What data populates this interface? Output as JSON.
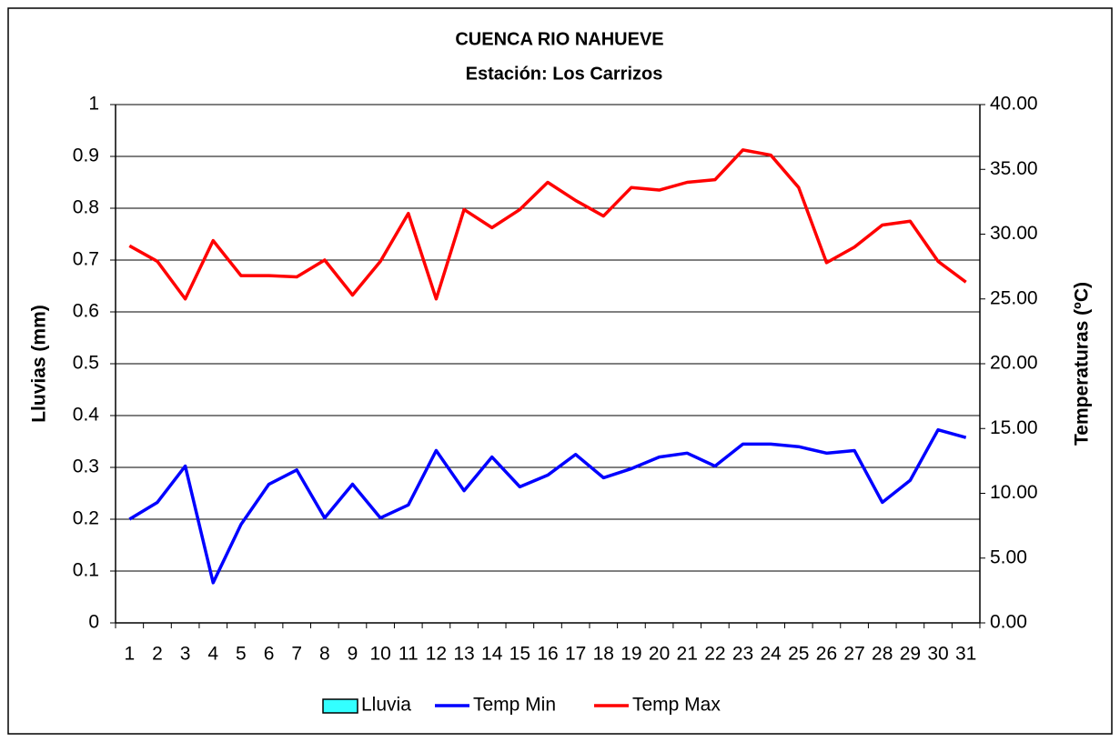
{
  "chart_data": {
    "type": "bar_line",
    "title": "CUENCA RIO NAHUEVE",
    "subtitle": "Estación: Los Carrizos",
    "y_label": "Lluvias (mm)",
    "y2_label": "Temperaturas (ºC)",
    "categories": [
      "1",
      "2",
      "3",
      "4",
      "5",
      "6",
      "7",
      "8",
      "9",
      "10",
      "11",
      "12",
      "13",
      "14",
      "15",
      "16",
      "17",
      "18",
      "19",
      "20",
      "21",
      "22",
      "23",
      "24",
      "25",
      "26",
      "27",
      "28",
      "29",
      "30",
      "31"
    ],
    "ylim": [
      0,
      1
    ],
    "yticks": [
      0,
      0.1,
      0.2,
      0.3,
      0.4,
      0.5,
      0.6,
      0.7,
      0.8,
      0.9,
      1
    ],
    "y2lim": [
      0,
      40
    ],
    "y2ticks": [
      {
        "value": 0,
        "label": "0.00"
      },
      {
        "value": 5,
        "label": "5.00"
      },
      {
        "value": 10,
        "label": "10.00"
      },
      {
        "value": 15,
        "label": "15.00"
      },
      {
        "value": 20,
        "label": "20.00"
      },
      {
        "value": 25,
        "label": "25.00"
      },
      {
        "value": 30,
        "label": "30.00"
      },
      {
        "value": 35,
        "label": "35.00"
      },
      {
        "value": 40,
        "label": "40.00"
      }
    ],
    "grid": true,
    "legend": "bottom",
    "series": [
      {
        "name": "Lluvia",
        "type": "bar",
        "color": "#33ffff",
        "values": [
          0,
          0,
          0,
          0,
          0,
          0,
          0,
          0,
          0,
          0,
          0,
          0,
          0,
          0,
          0,
          0,
          0,
          0,
          0,
          0,
          0,
          0,
          0,
          0,
          0,
          0,
          0,
          0,
          0,
          0,
          0
        ]
      },
      {
        "name": "Temp Min",
        "type": "line",
        "axis": "y2",
        "color": "#0000ff",
        "values": [
          8.0,
          9.3,
          12.1,
          3.1,
          7.6,
          10.7,
          11.8,
          8.1,
          10.7,
          8.1,
          9.1,
          13.3,
          10.2,
          12.8,
          10.5,
          11.4,
          13.0,
          11.2,
          11.9,
          12.8,
          13.1,
          12.1,
          13.8,
          13.8,
          13.6,
          13.1,
          13.3,
          9.3,
          11.0,
          14.9,
          14.3
        ]
      },
      {
        "name": "Temp Max",
        "type": "line",
        "axis": "y2",
        "color": "#ff0000",
        "values": [
          29.1,
          27.9,
          25.0,
          29.5,
          26.8,
          26.8,
          26.7,
          28.0,
          25.3,
          27.9,
          31.6,
          25.0,
          31.9,
          30.5,
          31.9,
          34.0,
          32.6,
          31.4,
          33.6,
          33.4,
          34.0,
          34.2,
          36.5,
          36.1,
          33.6,
          27.8,
          29.0,
          30.7,
          31.0,
          27.9,
          26.3
        ]
      }
    ]
  }
}
